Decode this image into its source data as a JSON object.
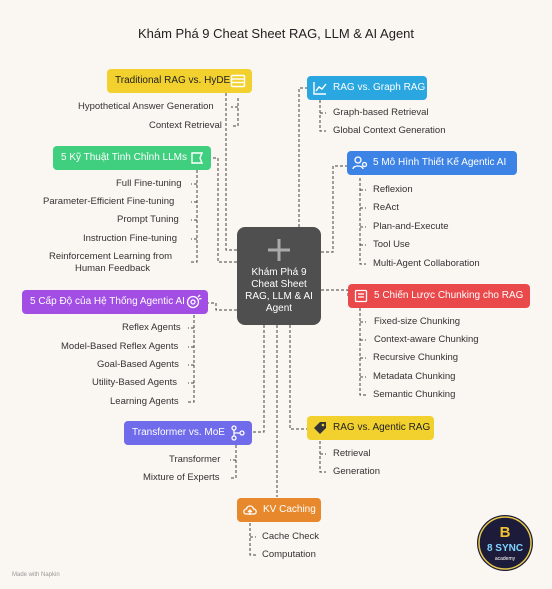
{
  "title": "Khám Phá 9 Cheat Sheet RAG, LLM & AI Agent",
  "center": "Khám Phá 9 Cheat Sheet RAG, LLM & AI Agent",
  "footer": "Made with  Napkin",
  "colors": {
    "yellow": "#f2d12e",
    "blue": "#2aa6e0",
    "green": "#3fcf7f",
    "royal": "#3d83e6",
    "purple": "#a24ee4",
    "red": "#e9494b",
    "violet": "#6f6bea",
    "orange": "#e8882c",
    "center": "#4f4f4f"
  },
  "nodes": {
    "trad": {
      "label": "Traditional RAG vs. HyDE",
      "icon": "window-icon",
      "items": [
        "Hypothetical Answer Generation",
        "Context Retrieval"
      ]
    },
    "graph": {
      "label": "RAG vs. Graph RAG",
      "icon": "line-chart-icon",
      "items": [
        "Graph-based Retrieval",
        "Global Context Generation"
      ]
    },
    "tune": {
      "label": "5 Kỹ Thuật Tinh Chỉnh LLMs",
      "icon": "bookmark-icon",
      "items": [
        "Full Fine-tuning",
        "Parameter-Efficient Fine-tuning",
        "Prompt Tuning",
        "Instruction Fine-tuning",
        "Reinforcement Learning from",
        "Human Feedback"
      ]
    },
    "design": {
      "label": "5 Mô Hình Thiết Kế Agentic AI",
      "icon": "user-gear-icon",
      "items": [
        "Reflexion",
        "ReAct",
        "Plan-and-Execute",
        "Tool Use",
        "Multi-Agent Collaboration"
      ]
    },
    "levels": {
      "label": "5 Cấp Độ của Hệ Thống Agentic AI",
      "icon": "brain-gear-icon",
      "items": [
        "Reflex Agents",
        "Model-Based Reflex Agents",
        "Goal-Based Agents",
        "Utility-Based Agents",
        "Learning Agents"
      ]
    },
    "chunk": {
      "label": "5 Chiến Lược Chunking cho RAG",
      "icon": "document-icon",
      "items": [
        "Fixed-size Chunking",
        "Context-aware Chunking",
        "Recursive Chunking",
        "Metadata Chunking",
        "Semantic Chunking"
      ]
    },
    "moe": {
      "label": "Transformer vs. MoE",
      "icon": "branch-icon",
      "items": [
        "Transformer",
        "Mixture of Experts"
      ]
    },
    "agentic": {
      "label": "RAG vs. Agentic RAG",
      "icon": "tag-icon",
      "items": [
        "Retrieval",
        "Generation"
      ]
    },
    "kv": {
      "label": "KV Caching",
      "icon": "cloud-upload-icon",
      "items": [
        "Cache Check",
        "Computation"
      ]
    }
  },
  "logo": {
    "top": "B",
    "mid": "8 SYNC",
    "sub": "academy"
  }
}
